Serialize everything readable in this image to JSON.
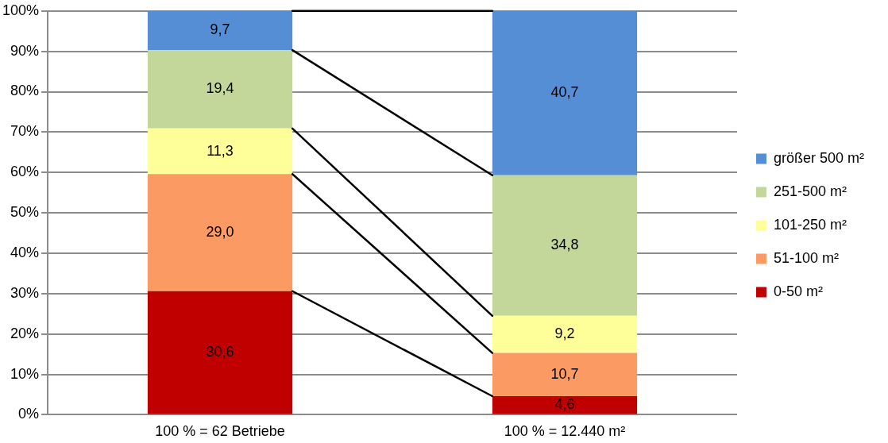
{
  "chart_data": {
    "type": "bar",
    "stacked": true,
    "categories": [
      "100 % = 62 Betriebe",
      "100 % = 12.440 m²"
    ],
    "series": [
      {
        "name": "0-50 m²",
        "color": "#c00000",
        "values": [
          30.6,
          4.6
        ],
        "value_labels": [
          "30,6",
          "4,6"
        ]
      },
      {
        "name": "51-100 m²",
        "color": "#fb9a62",
        "values": [
          29.0,
          10.7
        ],
        "value_labels": [
          "29,0",
          "10,7"
        ]
      },
      {
        "name": "101-250 m²",
        "color": "#ffff99",
        "values": [
          11.3,
          9.2
        ],
        "value_labels": [
          "11,3",
          "9,2"
        ]
      },
      {
        "name": "251-500 m²",
        "color": "#c4d79b",
        "values": [
          19.4,
          34.8
        ],
        "value_labels": [
          "19,4",
          "34,8"
        ]
      },
      {
        "name": "größer 500 m²",
        "color": "#558ed5",
        "values": [
          9.7,
          40.7
        ],
        "value_labels": [
          "9,7",
          "40,7"
        ]
      }
    ],
    "ylim": [
      0,
      100
    ],
    "yticks": [
      {
        "value": 0,
        "label": "0%"
      },
      {
        "value": 10,
        "label": "10%"
      },
      {
        "value": 20,
        "label": "20%"
      },
      {
        "value": 30,
        "label": "30%"
      },
      {
        "value": 40,
        "label": "40%"
      },
      {
        "value": 50,
        "label": "50%"
      },
      {
        "value": 60,
        "label": "60%"
      },
      {
        "value": 70,
        "label": "70%"
      },
      {
        "value": 80,
        "label": "80%"
      },
      {
        "value": 90,
        "label": "90%"
      },
      {
        "value": 100,
        "label": "100%"
      }
    ],
    "grid": "y",
    "legend": "right"
  }
}
